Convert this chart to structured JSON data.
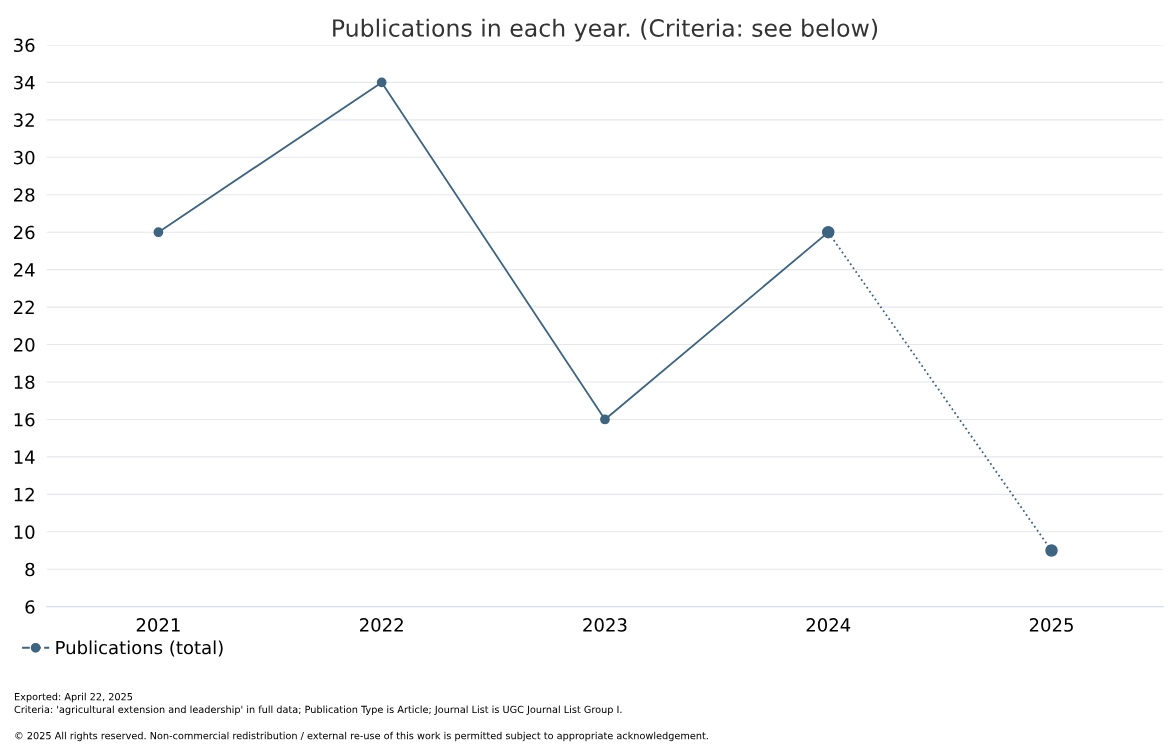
{
  "chart_data": {
    "type": "line",
    "title": "Publications in each year. (Criteria: see below)",
    "categories": [
      "2021",
      "2022",
      "2023",
      "2024",
      "2025"
    ],
    "series": [
      {
        "name": "Publications (total)",
        "color": "#3d6480",
        "values": [
          26,
          34,
          16,
          26,
          null
        ],
        "line_style": "solid"
      },
      {
        "color": "#3d6480",
        "values": [
          null,
          null,
          null,
          26,
          9
        ],
        "line_style": "dotted"
      }
    ],
    "ylim": [
      6,
      36
    ],
    "yticks": [
      6,
      8,
      10,
      12,
      14,
      16,
      18,
      20,
      22,
      24,
      26,
      28,
      30,
      32,
      34,
      36
    ],
    "grid": "y",
    "legend": "bottom left",
    "marker": "circle",
    "annotations": [
      "Exported: April 22, 2025",
      "Criteria: 'agricultural extension and leadership' in full data; Publication Type is Article; Journal List is UGC Journal List Group I.",
      "© 2025 All rights reserved. Non-commercial redistribution / external re-use of this work is permitted subject to appropriate acknowledgement."
    ]
  }
}
